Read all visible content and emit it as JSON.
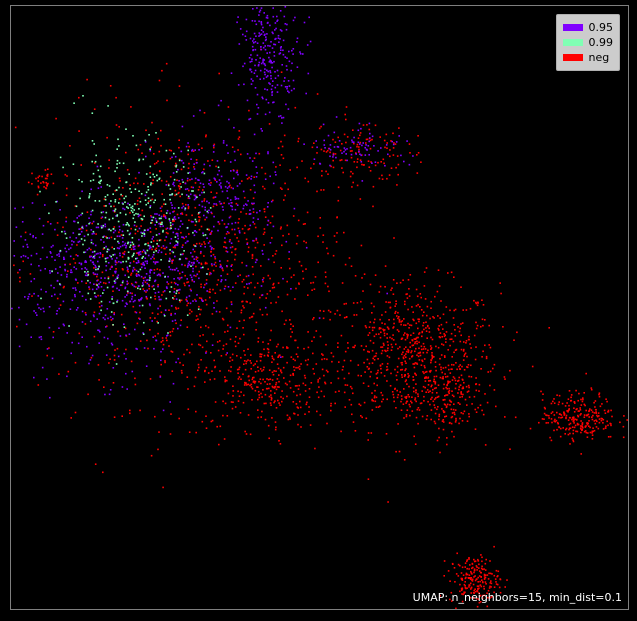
{
  "chart_data": {
    "type": "scatter",
    "caption": "UMAP: n_neighbors=15, min_dist=0.1",
    "legend": [
      {
        "label": "0.95",
        "color": "#8000ff"
      },
      {
        "label": "0.99",
        "color": "#80ffb4"
      },
      {
        "label": "neg",
        "color": "#ff0000"
      }
    ],
    "background": "#000000",
    "axes_ticks": "none",
    "legend_placement": "top-right",
    "clusters": [
      {
        "series": "neg",
        "center": [
          0.65,
          0.42
        ],
        "spread": [
          0.07,
          0.06
        ],
        "count": 700
      },
      {
        "series": "neg",
        "center": [
          0.41,
          0.38
        ],
        "spread": [
          0.05,
          0.04
        ],
        "count": 300
      },
      {
        "series": "neg",
        "center": [
          0.3,
          0.58
        ],
        "spread": [
          0.12,
          0.12
        ],
        "count": 900
      },
      {
        "series": "neg",
        "center": [
          0.75,
          0.05
        ],
        "spread": [
          0.02,
          0.02
        ],
        "count": 200
      },
      {
        "series": "neg",
        "center": [
          0.7,
          0.35
        ],
        "spread": [
          0.03,
          0.03
        ],
        "count": 150
      },
      {
        "series": "neg",
        "center": [
          0.05,
          0.71
        ],
        "spread": [
          0.01,
          0.01
        ],
        "count": 30
      },
      {
        "series": "neg",
        "center": [
          0.92,
          0.32
        ],
        "spread": [
          0.03,
          0.02
        ],
        "count": 250
      },
      {
        "series": "neg",
        "center": [
          0.56,
          0.76
        ],
        "spread": [
          0.04,
          0.03
        ],
        "count": 120
      },
      {
        "series": "0.95",
        "center": [
          0.18,
          0.57
        ],
        "spread": [
          0.1,
          0.05
        ],
        "count": 650
      },
      {
        "series": "0.95",
        "center": [
          0.33,
          0.68
        ],
        "spread": [
          0.05,
          0.06
        ],
        "count": 250
      },
      {
        "series": "0.95",
        "center": [
          0.42,
          0.92
        ],
        "spread": [
          0.025,
          0.045
        ],
        "count": 250
      },
      {
        "series": "0.95",
        "center": [
          0.56,
          0.77
        ],
        "spread": [
          0.04,
          0.02
        ],
        "count": 80
      },
      {
        "series": "0.95",
        "center": [
          0.16,
          0.44
        ],
        "spread": [
          0.08,
          0.05
        ],
        "count": 80
      },
      {
        "series": "0.99",
        "center": [
          0.19,
          0.64
        ],
        "spread": [
          0.06,
          0.07
        ],
        "count": 350
      }
    ]
  }
}
